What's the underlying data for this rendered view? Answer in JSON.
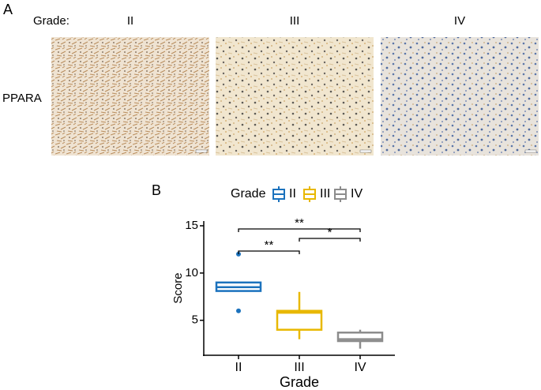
{
  "panel_a": {
    "label": "A",
    "grade_label": "Grade:",
    "grades": [
      "II",
      "III",
      "IV"
    ],
    "row_label": "PPARA"
  },
  "panel_b_label": "B",
  "chart_data": {
    "type": "box",
    "x_label": "Grade",
    "y_label": "Score",
    "legend_title": "Grade",
    "categories": [
      "II",
      "III",
      "IV"
    ],
    "series": [
      {
        "name": "II",
        "color": "#1b72bd",
        "min": 8.1,
        "q1": 8.1,
        "median": 8.5,
        "q3": 9,
        "max": 9,
        "outliers": [
          12,
          6
        ]
      },
      {
        "name": "III",
        "color": "#e8b800",
        "min": 3,
        "q1": 4,
        "median": 5.8,
        "q3": 6,
        "max": 8,
        "outliers": []
      },
      {
        "name": "IV",
        "color": "#8c8c8c",
        "min": 2,
        "q1": 2.8,
        "median": 3,
        "q3": 3.7,
        "max": 4,
        "outliers": []
      }
    ],
    "ylim": [
      1.3,
      15.5
    ],
    "yticks": [
      5,
      10,
      15
    ],
    "annotations": [
      "**",
      "**",
      "*"
    ]
  }
}
